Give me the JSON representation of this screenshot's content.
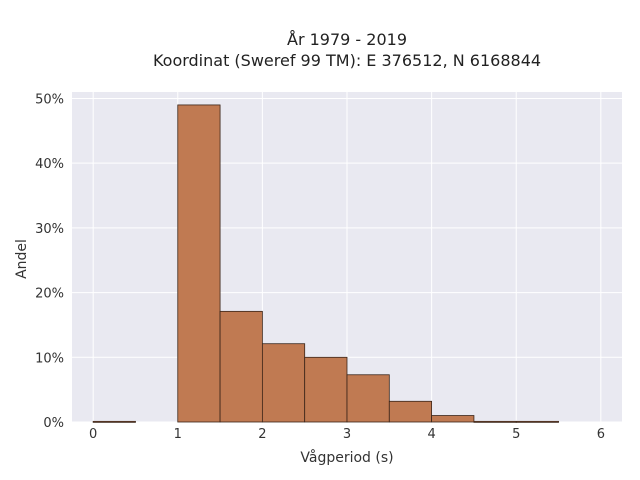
{
  "chart_data": {
    "type": "bar",
    "title": "År 1979 - 2019",
    "subtitle": "Koordinat (Sweref 99 TM): E 376512, N 6168844",
    "xlabel": "Vågperiod (s)",
    "ylabel": "Andel",
    "xlim": [
      -0.25,
      6.25
    ],
    "ylim": [
      0,
      0.51
    ],
    "x_ticks": [
      {
        "value": 0,
        "label": "0"
      },
      {
        "value": 1,
        "label": "1"
      },
      {
        "value": 2,
        "label": "2"
      },
      {
        "value": 3,
        "label": "3"
      },
      {
        "value": 4,
        "label": "4"
      },
      {
        "value": 5,
        "label": "5"
      },
      {
        "value": 6,
        "label": "6"
      }
    ],
    "y_ticks": [
      {
        "value": 0,
        "label": "0%"
      },
      {
        "value": 0.1,
        "label": "10%"
      },
      {
        "value": 0.2,
        "label": "20%"
      },
      {
        "value": 0.3,
        "label": "30%"
      },
      {
        "value": 0.4,
        "label": "40%"
      },
      {
        "value": 0.5,
        "label": "50%"
      }
    ],
    "bins": [
      {
        "x0": 0.0,
        "x1": 0.5,
        "value": 0.001
      },
      {
        "x0": 0.5,
        "x1": 1.0,
        "value": 0.0
      },
      {
        "x0": 1.0,
        "x1": 1.5,
        "value": 0.49
      },
      {
        "x0": 1.5,
        "x1": 2.0,
        "value": 0.171
      },
      {
        "x0": 2.0,
        "x1": 2.5,
        "value": 0.121
      },
      {
        "x0": 2.5,
        "x1": 3.0,
        "value": 0.1
      },
      {
        "x0": 3.0,
        "x1": 3.5,
        "value": 0.073
      },
      {
        "x0": 3.5,
        "x1": 4.0,
        "value": 0.032
      },
      {
        "x0": 4.0,
        "x1": 4.5,
        "value": 0.01
      },
      {
        "x0": 4.5,
        "x1": 5.0,
        "value": 0.001
      },
      {
        "x0": 5.0,
        "x1": 5.5,
        "value": 0.001
      }
    ],
    "grid": true,
    "colors": {
      "bar_fill": "#c07a52",
      "bar_stroke": "#3a2418",
      "plot_background": "#e9e9f1",
      "grid": "#ffffff"
    }
  }
}
